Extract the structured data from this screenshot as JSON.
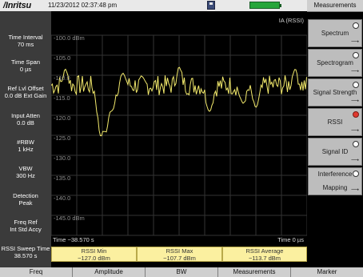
{
  "header": {
    "logo_text": "/Inritsu",
    "datetime": "11/23/2012 02:37:48 pm"
  },
  "left_params": [
    {
      "label": "Time Interval",
      "value": "70 ms"
    },
    {
      "label": "Time Span",
      "value": "0 µs"
    },
    {
      "label": "Ref Lvl Offset",
      "value": "0.0 dB Ext Gain"
    },
    {
      "label": "Input Atten",
      "value": "0.0 dB"
    },
    {
      "label": "#RBW",
      "value": "1 kHz"
    },
    {
      "label": "VBW",
      "value": "300 Hz"
    },
    {
      "label": "Detection",
      "value": "Peak"
    },
    {
      "label": "Freq Ref",
      "value": "Int Std Accy"
    },
    {
      "label": "RSSI Sweep Time",
      "value": "38.570 s"
    }
  ],
  "plot": {
    "mode_label": "IA (RSSI)",
    "y_ticks": [
      "-100.0 dBm",
      "-105.0",
      "-110.0",
      "-115.0",
      "-120.0",
      "-125.0",
      "-130.0",
      "-135.0",
      "-140.0",
      "-145.0 dBm"
    ],
    "time_left": "Time −38.570 s",
    "time_right": "Time  0 µs",
    "trace_color": "#f3ea6c"
  },
  "rssi_summary": [
    {
      "label": "RSSI Min",
      "value": "−127.0 dBm"
    },
    {
      "label": "RSSI Max",
      "value": "−107.7 dBm"
    },
    {
      "label": "RSSI Average",
      "value": "−113.7 dBm"
    }
  ],
  "menu": {
    "title": "Measurements",
    "items": [
      {
        "label": "Spectrum",
        "selected": false
      },
      {
        "label": "Spectrogram",
        "selected": false
      },
      {
        "label": "Signal Strength",
        "selected": false
      },
      {
        "label": "RSSI",
        "selected": true
      },
      {
        "label": "Signal ID",
        "selected": false
      },
      {
        "label_line1": "Interference",
        "label_line2": "Mapping",
        "selected": false
      }
    ]
  },
  "bottom_tabs": [
    "Freq",
    "Amplitude",
    "BW",
    "Measurements",
    "Marker"
  ]
}
